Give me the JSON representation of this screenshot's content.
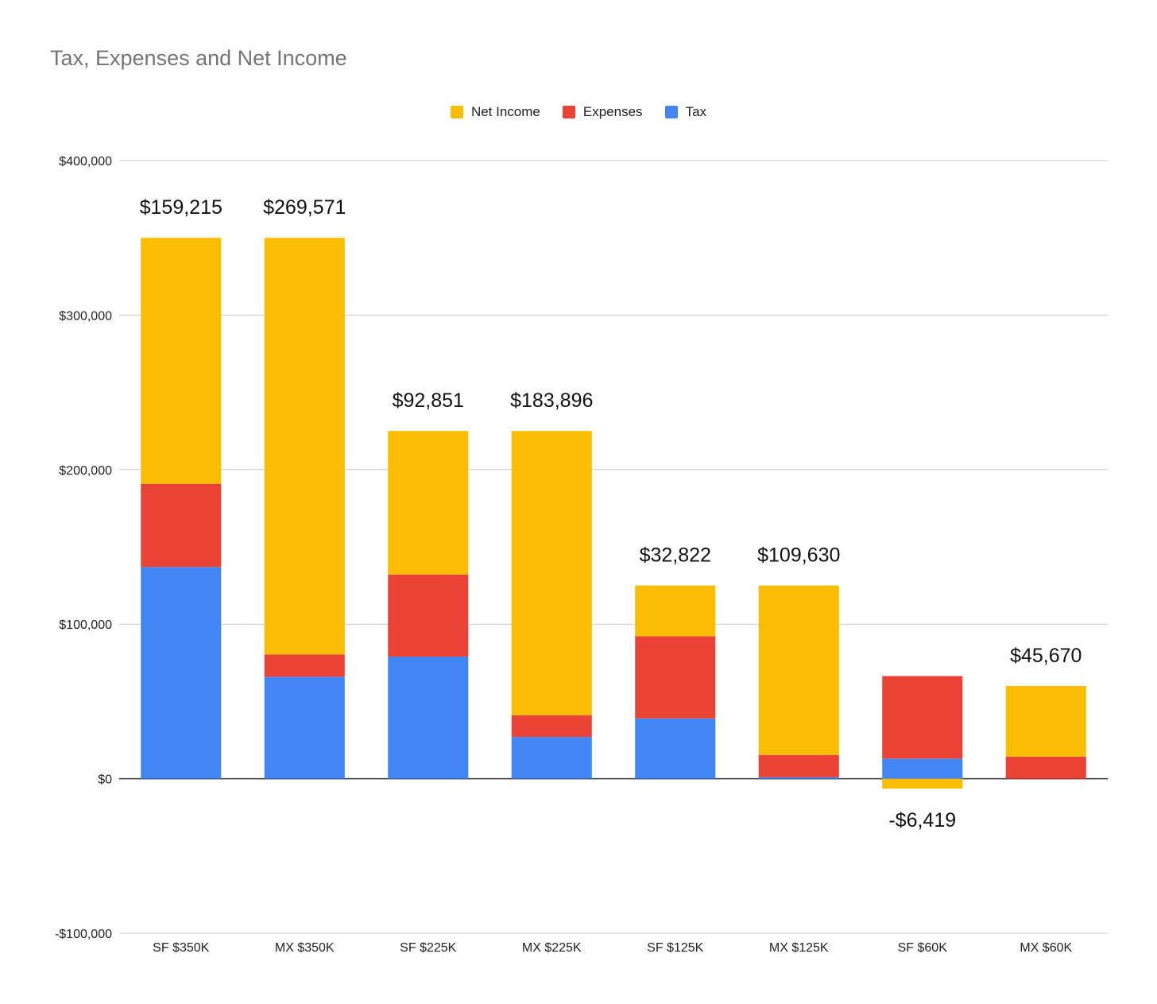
{
  "chart_data": {
    "type": "bar",
    "stacked": true,
    "title": "Tax, Expenses and Net Income",
    "categories": [
      "SF $350K",
      "MX $350K",
      "SF $225K",
      "MX $225K",
      "SF $125K",
      "MX $125K",
      "SF $60K",
      "MX $60K"
    ],
    "series": [
      {
        "name": "Tax",
        "color": "#4285F4",
        "values": [
          137000,
          66000,
          79000,
          27000,
          39000,
          1000,
          13000,
          0
        ]
      },
      {
        "name": "Expenses",
        "color": "#EA4335",
        "values": [
          53785,
          14429,
          53149,
          14104,
          53178,
          14370,
          53419,
          14330
        ]
      },
      {
        "name": "Net Income",
        "color": "#FBBC04",
        "values": [
          159215,
          269571,
          92851,
          183896,
          32822,
          109630,
          -6419,
          45670
        ]
      }
    ],
    "data_labels": [
      "$159,215",
      "$269,571",
      "$92,851",
      "$183,896",
      "$32,822",
      "$109,630",
      "-$6,419",
      "$45,670"
    ],
    "legend_order": [
      "Net Income",
      "Expenses",
      "Tax"
    ],
    "legend_position": "top",
    "ylim": [
      -100000,
      400000
    ],
    "yticks": [
      400000,
      300000,
      200000,
      100000,
      0,
      -100000
    ],
    "ytick_labels": [
      "$400,000",
      "$300,000",
      "$200,000",
      "$100,000",
      "$0",
      "-$100,000"
    ],
    "grid": true
  }
}
